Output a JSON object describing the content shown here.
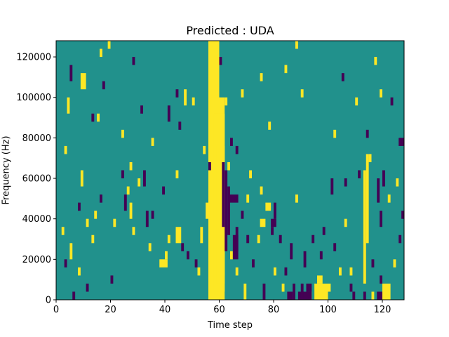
{
  "chart_data": {
    "type": "heatmap",
    "title": "Predicted : UDA",
    "xlabel": "Time step",
    "ylabel": "Frequency (Hz)",
    "xlim": [
      0,
      128
    ],
    "ylim": [
      0,
      128000
    ],
    "x_ticks": [
      0,
      20,
      40,
      60,
      80,
      100,
      120
    ],
    "x_tick_labels": [
      "0",
      "20",
      "40",
      "60",
      "80",
      "100",
      "120"
    ],
    "y_ticks": [
      0,
      20000,
      40000,
      60000,
      80000,
      100000,
      120000
    ],
    "y_tick_labels": [
      "0",
      "20000",
      "40000",
      "60000",
      "80000",
      "100000",
      "120000"
    ],
    "grid": false,
    "colors": {
      "background": "#21918c",
      "high": "#fde725",
      "low": "#440154"
    },
    "classes": {
      "background": 0,
      "high": 1,
      "low": -1
    },
    "cell_size": {
      "time_steps": 1,
      "frequency_hz": 4000
    },
    "cells_high": [
      [
        56,
        0,
        60,
        128000
      ],
      [
        57,
        0,
        62,
        100000
      ],
      [
        58,
        4000,
        62,
        92000
      ],
      [
        59,
        8000,
        62,
        76000
      ],
      [
        60,
        12000,
        62,
        68000
      ],
      [
        60,
        44000,
        62,
        60000
      ],
      [
        113,
        8000,
        114,
        64000
      ],
      [
        114,
        28000,
        115,
        72000
      ],
      [
        95,
        0,
        100,
        8000
      ],
      [
        120,
        0,
        123,
        8000
      ],
      [
        96,
        8000,
        98,
        12000
      ],
      [
        100,
        4000,
        101,
        8000
      ],
      [
        9,
        104000,
        11,
        112000
      ],
      [
        38,
        16000,
        41,
        20000
      ],
      [
        16,
        120000,
        17,
        124000
      ],
      [
        15,
        88000,
        16,
        92000
      ],
      [
        26,
        52000,
        27,
        56000
      ],
      [
        27,
        64000,
        28,
        68000
      ],
      [
        27,
        40000,
        28,
        48000
      ],
      [
        24,
        80000,
        25,
        84000
      ],
      [
        44,
        60000,
        45,
        64000
      ],
      [
        50,
        96000,
        51,
        100000
      ],
      [
        47,
        96000,
        48,
        104000
      ],
      [
        77,
        44000,
        79,
        48000
      ],
      [
        75,
        36000,
        77,
        40000
      ],
      [
        75,
        52000,
        76,
        56000
      ],
      [
        71,
        60000,
        72,
        64000
      ],
      [
        74,
        28000,
        75,
        32000
      ],
      [
        83,
        4000,
        84,
        8000
      ],
      [
        80,
        12000,
        81,
        16000
      ],
      [
        88,
        48000,
        89,
        52000
      ],
      [
        40,
        20000,
        41,
        24000
      ],
      [
        41,
        28000,
        42,
        32000
      ],
      [
        44,
        28000,
        46,
        36000
      ],
      [
        52,
        12000,
        53,
        16000
      ],
      [
        53,
        28000,
        54,
        36000
      ],
      [
        55,
        40000,
        56,
        48000
      ],
      [
        54,
        72000,
        55,
        76000
      ],
      [
        57,
        76000,
        58,
        80000
      ],
      [
        62,
        96000,
        63,
        100000
      ],
      [
        66,
        12000,
        67,
        16000
      ],
      [
        68,
        100000,
        69,
        104000
      ],
      [
        69,
        0,
        70,
        8000
      ],
      [
        75,
        108000,
        76,
        112000
      ],
      [
        84,
        112000,
        85,
        116000
      ],
      [
        88,
        124000,
        89,
        128000
      ],
      [
        90,
        100000,
        91,
        104000
      ],
      [
        104,
        12000,
        105,
        16000
      ],
      [
        106,
        36000,
        107,
        40000
      ],
      [
        117,
        116000,
        118,
        120000
      ],
      [
        122,
        48000,
        123,
        52000
      ],
      [
        124,
        16000,
        125,
        20000
      ],
      [
        2,
        32000,
        3,
        36000
      ],
      [
        3,
        72000,
        4,
        76000
      ],
      [
        4,
        92000,
        5,
        100000
      ],
      [
        5,
        20000,
        6,
        28000
      ],
      [
        8,
        12000,
        9,
        16000
      ],
      [
        9,
        56000,
        10,
        64000
      ],
      [
        11,
        36000,
        12,
        40000
      ],
      [
        13,
        28000,
        14,
        32000
      ],
      [
        14,
        40000,
        15,
        44000
      ],
      [
        19,
        124000,
        20,
        128000
      ],
      [
        21,
        36000,
        22,
        40000
      ],
      [
        28,
        32000,
        29,
        36000
      ],
      [
        30,
        56000,
        31,
        60000
      ],
      [
        34,
        24000,
        35,
        28000
      ],
      [
        35,
        76000,
        36,
        80000
      ],
      [
        63,
        64000,
        64,
        68000
      ],
      [
        64,
        20000,
        65,
        24000
      ],
      [
        70,
        48000,
        71,
        52000
      ],
      [
        78,
        84000,
        79,
        88000
      ],
      [
        93,
        0,
        94,
        4000
      ],
      [
        102,
        80000,
        103,
        84000
      ],
      [
        108,
        12000,
        109,
        16000
      ],
      [
        110,
        96000,
        111,
        100000
      ],
      [
        115,
        68000,
        116,
        72000
      ],
      [
        116,
        0,
        117,
        4000
      ],
      [
        119,
        100000,
        120,
        104000
      ],
      [
        125,
        56000,
        126,
        60000
      ]
    ],
    "cells_low": [
      [
        61,
        36000,
        62,
        68000
      ],
      [
        62,
        24000,
        63,
        64000
      ],
      [
        63,
        32000,
        64,
        56000
      ],
      [
        64,
        48000,
        67,
        52000
      ],
      [
        65,
        20000,
        67,
        32000
      ],
      [
        66,
        24000,
        67,
        36000
      ],
      [
        79,
        36000,
        81,
        40000
      ],
      [
        80,
        40000,
        81,
        48000
      ],
      [
        89,
        0,
        94,
        4000
      ],
      [
        90,
        0,
        91,
        8000
      ],
      [
        92,
        4000,
        93,
        8000
      ],
      [
        85,
        0,
        87,
        4000
      ],
      [
        87,
        0,
        88,
        8000
      ],
      [
        118,
        0,
        120,
        4000
      ],
      [
        119,
        8000,
        120,
        12000
      ],
      [
        118,
        48000,
        119,
        60000
      ],
      [
        119,
        36000,
        120,
        44000
      ],
      [
        120,
        56000,
        121,
        64000
      ],
      [
        109,
        0,
        110,
        4000
      ],
      [
        113,
        0,
        114,
        4000
      ],
      [
        114,
        80000,
        115,
        84000
      ],
      [
        126,
        76000,
        128,
        80000
      ],
      [
        126,
        28000,
        127,
        32000
      ],
      [
        105,
        108000,
        106,
        112000
      ],
      [
        101,
        52000,
        102,
        60000
      ],
      [
        97,
        20000,
        98,
        24000
      ],
      [
        94,
        28000,
        95,
        32000
      ],
      [
        91,
        16000,
        92,
        24000
      ],
      [
        86,
        20000,
        87,
        28000
      ],
      [
        84,
        12000,
        85,
        16000
      ],
      [
        82,
        28000,
        83,
        32000
      ],
      [
        79,
        32000,
        80,
        36000
      ],
      [
        76,
        0,
        77,
        8000
      ],
      [
        72,
        16000,
        73,
        20000
      ],
      [
        70,
        28000,
        71,
        32000
      ],
      [
        68,
        40000,
        69,
        44000
      ],
      [
        66,
        72000,
        67,
        76000
      ],
      [
        64,
        76000,
        65,
        80000
      ],
      [
        60,
        116000,
        61,
        120000
      ],
      [
        56,
        64000,
        57,
        68000
      ],
      [
        51,
        16000,
        52,
        20000
      ],
      [
        48,
        20000,
        49,
        24000
      ],
      [
        46,
        24000,
        47,
        28000
      ],
      [
        45,
        84000,
        46,
        88000
      ],
      [
        44,
        100000,
        45,
        104000
      ],
      [
        41,
        88000,
        42,
        96000
      ],
      [
        39,
        52000,
        40,
        56000
      ],
      [
        35,
        40000,
        36,
        44000
      ],
      [
        33,
        36000,
        34,
        44000
      ],
      [
        32,
        56000,
        33,
        64000
      ],
      [
        31,
        92000,
        32,
        96000
      ],
      [
        28,
        116000,
        29,
        120000
      ],
      [
        25,
        44000,
        26,
        52000
      ],
      [
        24,
        60000,
        25,
        64000
      ],
      [
        20,
        8000,
        21,
        12000
      ],
      [
        17,
        104000,
        18,
        108000
      ],
      [
        16,
        48000,
        17,
        52000
      ],
      [
        13,
        88000,
        14,
        92000
      ],
      [
        11,
        4000,
        12,
        8000
      ],
      [
        8,
        44000,
        9,
        48000
      ],
      [
        6,
        0,
        7,
        4000
      ],
      [
        5,
        108000,
        6,
        116000
      ],
      [
        3,
        16000,
        4,
        20000
      ],
      [
        93,
        4000,
        94,
        8000
      ],
      [
        98,
        32000,
        99,
        36000
      ],
      [
        102,
        24000,
        103,
        28000
      ],
      [
        106,
        56000,
        107,
        60000
      ],
      [
        108,
        4000,
        109,
        8000
      ],
      [
        111,
        60000,
        112,
        64000
      ],
      [
        116,
        16000,
        117,
        20000
      ],
      [
        123,
        96000,
        124,
        100000
      ],
      [
        127,
        40000,
        128,
        44000
      ]
    ]
  }
}
